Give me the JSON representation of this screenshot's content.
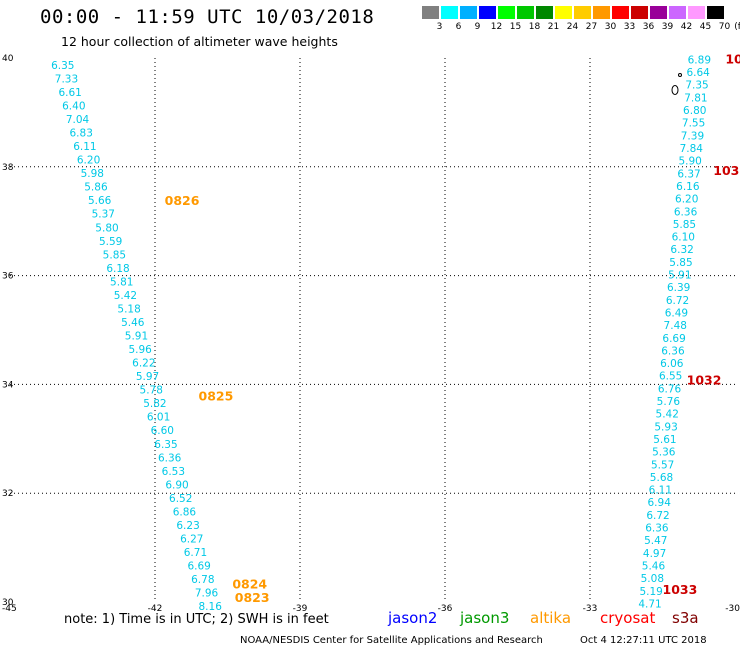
{
  "header": {
    "title": "00:00 - 11:59 UTC 10/03/2018",
    "subtitle": "12 hour collection of altimeter wave heights"
  },
  "colorbar": {
    "swatches": [
      "#808080",
      "#00ffff",
      "#00b0ff",
      "#0000ff",
      "#00ff00",
      "#00c800",
      "#008800",
      "#ffff00",
      "#ffcc00",
      "#ff9900",
      "#ff0000",
      "#cc0000",
      "#990099",
      "#cc66ff",
      "#ff99ff",
      "#000000"
    ],
    "labels": [
      "3",
      "6",
      "9",
      "12",
      "15",
      "18",
      "21",
      "24",
      "27",
      "30",
      "33",
      "36",
      "39",
      "42",
      "45",
      "70"
    ],
    "unit": "(ft)"
  },
  "notes": {
    "text": "note: 1) Time is in UTC; 2) SWH is in feet",
    "missions": [
      {
        "name": "jason2",
        "color": "#0000ff"
      },
      {
        "name": "jason3",
        "color": "#009900"
      },
      {
        "name": "altika",
        "color": "#ff9900"
      },
      {
        "name": "cryosat",
        "color": "#ff0000"
      },
      {
        "name": "s3a",
        "color": "#800000"
      }
    ]
  },
  "footer": {
    "source": "NOAA/NESDIS Center for Satellite Applications and Research",
    "timestamp": "Oct  4 12:27:11 UTC 2018"
  },
  "map": {
    "lon_range": [
      -45,
      -30
    ],
    "lat_range": [
      30,
      40
    ],
    "lon_ticks": [
      "-45",
      "-42",
      "-39",
      "-36",
      "-33",
      "-30"
    ],
    "lat_ticks": [
      "30",
      "32",
      "34",
      "36",
      "38",
      "40"
    ],
    "grid": "dotted",
    "track_west": {
      "color": "#00c8e6",
      "values": [
        "6.35",
        "7.33",
        "6.61",
        "6.40",
        "7.04",
        "6.83",
        "6.11",
        "6.20",
        "5.98",
        "5.86",
        "5.66",
        "5.37",
        "5.80",
        "5.59",
        "5.85",
        "6.18",
        "5.81",
        "5.42",
        "5.18",
        "5.46",
        "5.91",
        "5.96",
        "6.22",
        "5.97",
        "5.78",
        "5.82",
        "6.01",
        "6.60",
        "6.35",
        "6.36",
        "6.53",
        "6.90",
        "6.52",
        "6.86",
        "6.23",
        "6.27",
        "6.71",
        "6.69",
        "6.78",
        "7.96",
        "8.16"
      ]
    },
    "track_east": {
      "color": "#00c8e6",
      "values": [
        "6.89",
        "6.64",
        "7.35",
        "7.81",
        "6.80",
        "7.55",
        "7.39",
        "7.84",
        "5.90",
        "6.37",
        "6.16",
        "6.20",
        "6.36",
        "5.85",
        "6.10",
        "6.32",
        "5.85",
        "5.91",
        "6.39",
        "6.72",
        "6.49",
        "7.48",
        "6.69",
        "6.36",
        "6.06",
        "6.55",
        "6.76",
        "5.76",
        "5.42",
        "5.93",
        "5.61",
        "5.36",
        "5.57",
        "5.68",
        "6.11",
        "6.94",
        "6.72",
        "6.36",
        "5.47",
        "4.97",
        "5.46",
        "5.08",
        "5.19",
        "4.71"
      ]
    },
    "time_labels": [
      {
        "text": "0826",
        "color": "#ff9900",
        "lon": -41.8,
        "lat": 37.3
      },
      {
        "text": "0825",
        "color": "#ff9900",
        "lon": -41.1,
        "lat": 33.7
      },
      {
        "text": "0824",
        "color": "#ff9900",
        "lon": -40.4,
        "lat": 30.25
      },
      {
        "text": "0823",
        "color": "#ff9900",
        "lon": -40.35,
        "lat": 30.0
      },
      {
        "text": "1032",
        "color": "#cc0000",
        "lon": -31.0,
        "lat": 34.0
      },
      {
        "text": "1033",
        "color": "#cc0000",
        "lon": -31.5,
        "lat": 30.15
      },
      {
        "text": "103",
        "color": "#cc0000",
        "lon": -30.45,
        "lat": 37.85
      },
      {
        "text": "10",
        "color": "#cc0000",
        "lon": -30.2,
        "lat": 39.9
      }
    ]
  }
}
